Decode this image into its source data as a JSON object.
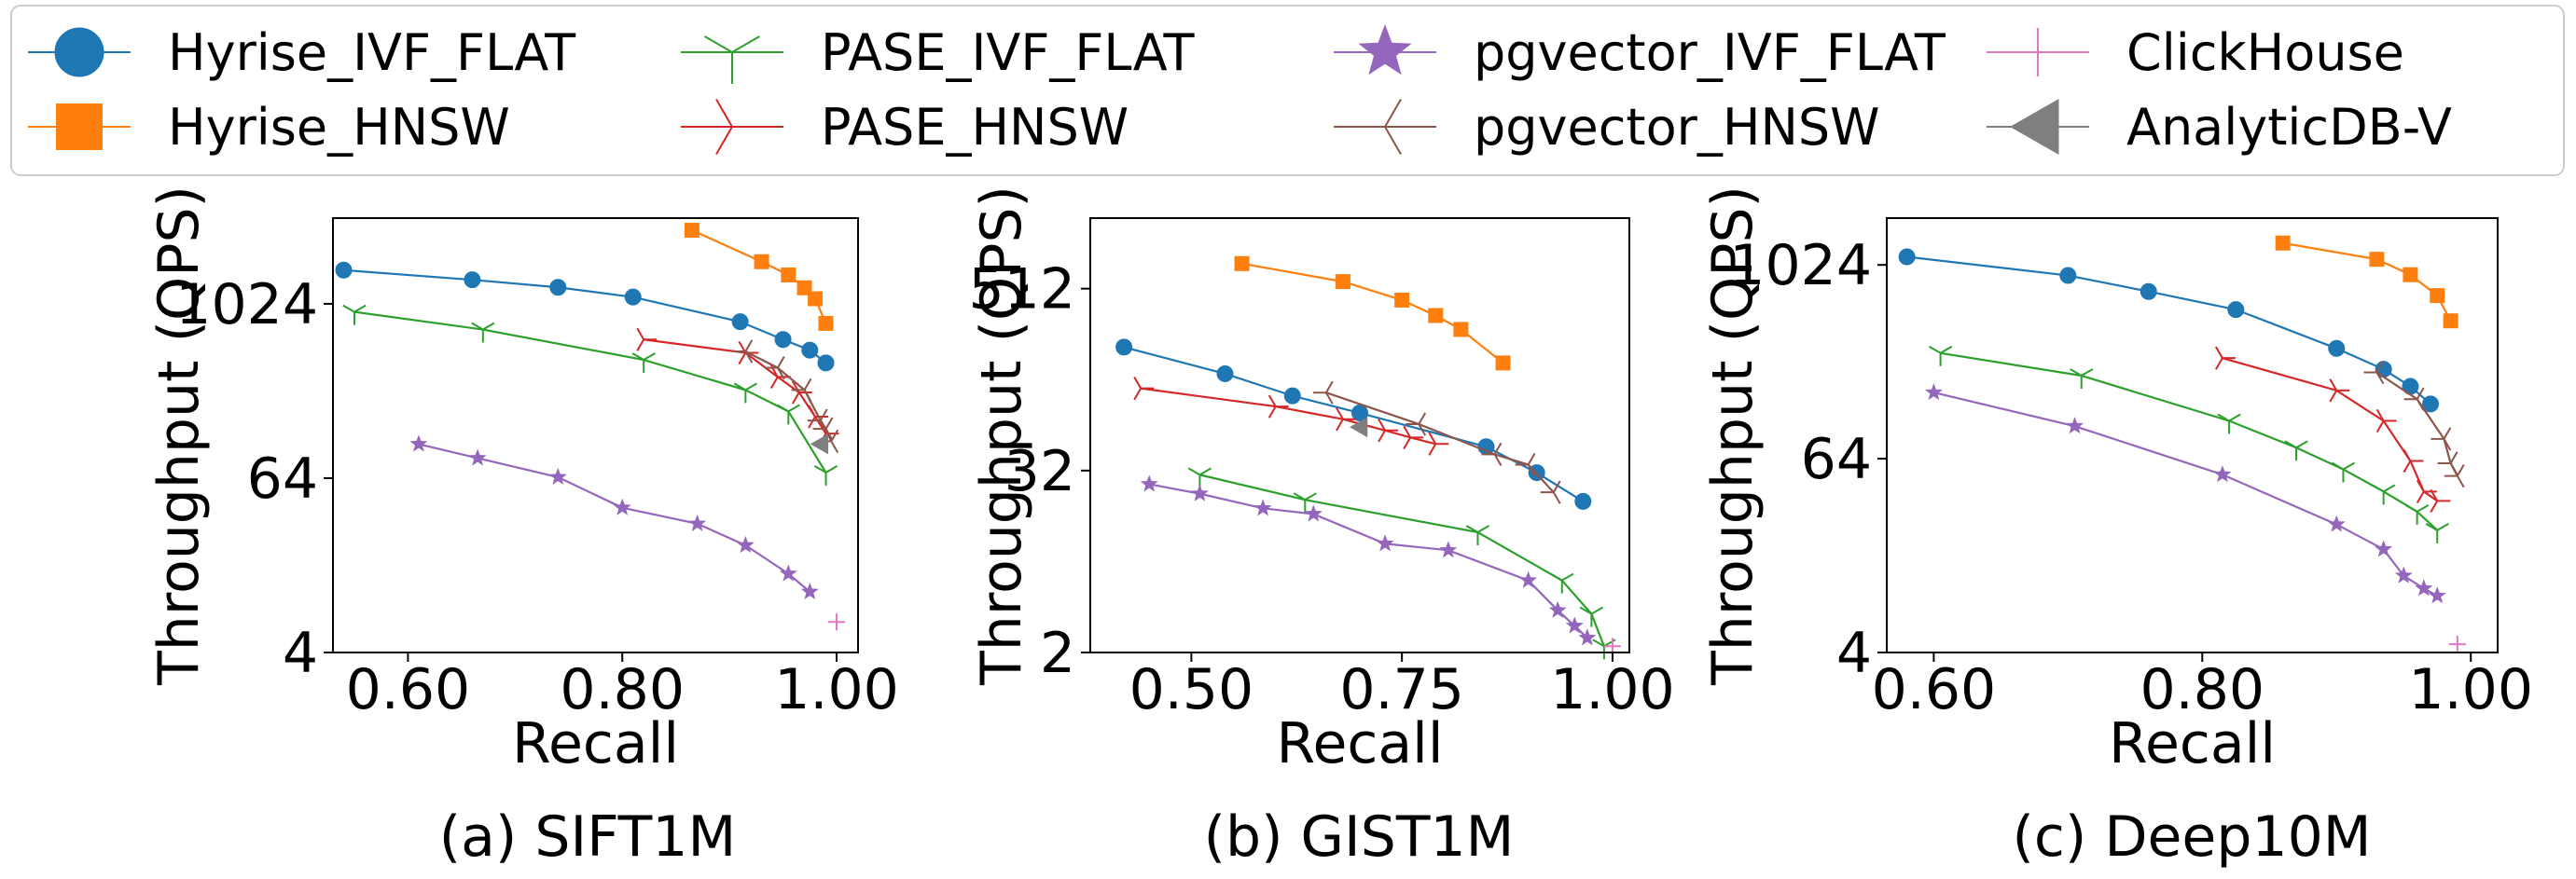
{
  "legend": {
    "items": [
      {
        "label": "Hyrise_IVF_FLAT",
        "series": "Hyrise_IVF_FLAT"
      },
      {
        "label": "Hyrise_HNSW",
        "series": "Hyrise_HNSW"
      },
      {
        "label": "PASE_IVF_FLAT",
        "series": "PASE_IVF_FLAT"
      },
      {
        "label": "PASE_HNSW",
        "series": "PASE_HNSW"
      },
      {
        "label": "pgvector_IVF_FLAT",
        "series": "pgvector_IVF_FLAT"
      },
      {
        "label": "pgvector_HNSW",
        "series": "pgvector_HNSW"
      },
      {
        "label": "ClickHouse",
        "series": "ClickHouse"
      },
      {
        "label": "AnalyticDB-V",
        "series": "AnalyticDB-V"
      }
    ]
  },
  "series_styles": {
    "Hyrise_IVF_FLAT": {
      "color": "#1f77b4",
      "marker": "circle"
    },
    "Hyrise_HNSW": {
      "color": "#ff7f0e",
      "marker": "square"
    },
    "PASE_IVF_FLAT": {
      "color": "#2ca02c",
      "marker": "tri-down"
    },
    "PASE_HNSW": {
      "color": "#d62728",
      "marker": "tri-right"
    },
    "pgvector_IVF_FLAT": {
      "color": "#9467bd",
      "marker": "star"
    },
    "pgvector_HNSW": {
      "color": "#8c564b",
      "marker": "tri-left"
    },
    "ClickHouse": {
      "color": "#e377c2",
      "marker": "plus"
    },
    "AnalyticDB-V": {
      "color": "#7f7f7f",
      "marker": "triangle-left"
    }
  },
  "chart_data": [
    {
      "type": "line",
      "caption": "(a) SIFT1M",
      "xlabel": "Recall",
      "ylabel": "Throughput (QPS)",
      "xlim": [
        0.53,
        1.02
      ],
      "ylim": [
        4,
        4000
      ],
      "yscale": "log2",
      "xticks": [
        0.6,
        0.8,
        1.0
      ],
      "xticklabels": [
        "0.60",
        "0.80",
        "1.00"
      ],
      "yticks": [
        4,
        64,
        1024
      ],
      "yticklabels": [
        "4",
        "64",
        "1024"
      ],
      "grid": false,
      "series": [
        {
          "name": "Hyrise_IVF_FLAT",
          "x": [
            0.54,
            0.66,
            0.74,
            0.81,
            0.91,
            0.95,
            0.975,
            0.99
          ],
          "y": [
            1750,
            1500,
            1330,
            1140,
            770,
            580,
            490,
            400
          ]
        },
        {
          "name": "Hyrise_HNSW",
          "x": [
            0.865,
            0.93,
            0.955,
            0.97,
            0.98,
            0.99
          ],
          "y": [
            3300,
            2000,
            1620,
            1320,
            1110,
            750
          ]
        },
        {
          "name": "PASE_IVF_FLAT",
          "x": [
            0.55,
            0.67,
            0.82,
            0.915,
            0.955,
            0.99
          ],
          "y": [
            900,
            680,
            420,
            260,
            185,
            70
          ]
        },
        {
          "name": "PASE_HNSW",
          "x": [
            0.82,
            0.915,
            0.945,
            0.965,
            0.98,
            0.99
          ],
          "y": [
            580,
            470,
            320,
            250,
            170,
            130
          ]
        },
        {
          "name": "pgvector_IVF_FLAT",
          "x": [
            0.61,
            0.665,
            0.74,
            0.8,
            0.87,
            0.915,
            0.955,
            0.975
          ],
          "y": [
            110,
            88,
            65,
            40,
            31,
            22,
            14,
            10.5
          ]
        },
        {
          "name": "pgvector_HNSW",
          "x": [
            0.915,
            0.945,
            0.97,
            0.985,
            0.99,
            0.995
          ],
          "y": [
            480,
            370,
            260,
            160,
            140,
            115
          ]
        },
        {
          "name": "ClickHouse",
          "x": [
            1.0
          ],
          "y": [
            6.5
          ]
        },
        {
          "name": "AnalyticDB-V",
          "x": [
            0.985
          ],
          "y": [
            110
          ]
        }
      ]
    },
    {
      "type": "line",
      "caption": "(b) GIST1M",
      "xlabel": "Recall",
      "ylabel": "Throughput (QPS)",
      "xlim": [
        0.38,
        1.02
      ],
      "ylim": [
        2,
        1500
      ],
      "yscale": "log2",
      "xticks": [
        0.5,
        0.75,
        1.0
      ],
      "xticklabels": [
        "0.50",
        "0.75",
        "1.00"
      ],
      "yticks": [
        2,
        32,
        512
      ],
      "yticklabels": [
        "2",
        "32",
        "512"
      ],
      "grid": false,
      "series": [
        {
          "name": "Hyrise_IVF_FLAT",
          "x": [
            0.42,
            0.54,
            0.62,
            0.7,
            0.85,
            0.91,
            0.965
          ],
          "y": [
            210,
            140,
            100,
            77,
            46,
            31,
            20
          ]
        },
        {
          "name": "Hyrise_HNSW",
          "x": [
            0.56,
            0.68,
            0.75,
            0.79,
            0.82,
            0.87
          ],
          "y": [
            750,
            570,
            430,
            340,
            275,
            165
          ]
        },
        {
          "name": "PASE_IVF_FLAT",
          "x": [
            0.51,
            0.635,
            0.84,
            0.94,
            0.975,
            0.99
          ],
          "y": [
            30,
            20.5,
            12.5,
            6,
            3.6,
            2.2
          ]
        },
        {
          "name": "PASE_HNSW",
          "x": [
            0.44,
            0.6,
            0.68,
            0.73,
            0.76,
            0.79
          ],
          "y": [
            112,
            85,
            70,
            59,
            53,
            48
          ]
        },
        {
          "name": "pgvector_IVF_FLAT",
          "x": [
            0.45,
            0.51,
            0.585,
            0.645,
            0.73,
            0.805,
            0.9,
            0.935,
            0.955,
            0.97
          ],
          "y": [
            26,
            22.5,
            18,
            16.5,
            10.5,
            9.5,
            6,
            3.8,
            3.0,
            2.5
          ]
        },
        {
          "name": "pgvector_HNSW",
          "x": [
            0.66,
            0.77,
            0.86,
            0.9,
            0.93
          ],
          "y": [
            105,
            65,
            41,
            35,
            23
          ]
        },
        {
          "name": "ClickHouse",
          "x": [
            1.0
          ],
          "y": [
            2.2
          ]
        },
        {
          "name": "AnalyticDB-V",
          "x": [
            0.7
          ],
          "y": [
            62
          ]
        }
      ]
    },
    {
      "type": "line",
      "caption": "(c) Deep10M",
      "xlabel": "Recall",
      "ylabel": "Throughput (QPS)",
      "xlim": [
        0.565,
        1.02
      ],
      "ylim": [
        4,
        2000
      ],
      "yscale": "log2",
      "xticks": [
        0.6,
        0.8,
        1.0
      ],
      "xticklabels": [
        "0.60",
        "0.80",
        "1.00"
      ],
      "yticks": [
        4,
        64,
        1024
      ],
      "yticklabels": [
        "4",
        "64",
        "1024"
      ],
      "grid": false,
      "series": [
        {
          "name": "Hyrise_IVF_FLAT",
          "x": [
            0.58,
            0.7,
            0.76,
            0.825,
            0.9,
            0.935,
            0.955,
            0.97
          ],
          "y": [
            1150,
            880,
            700,
            540,
            310,
            230,
            180,
            140
          ]
        },
        {
          "name": "Hyrise_HNSW",
          "x": [
            0.86,
            0.93,
            0.955,
            0.975,
            0.985
          ],
          "y": [
            1400,
            1110,
            890,
            660,
            460
          ]
        },
        {
          "name": "PASE_IVF_FLAT",
          "x": [
            0.605,
            0.71,
            0.82,
            0.87,
            0.905,
            0.935,
            0.96,
            0.975
          ],
          "y": [
            290,
            210,
            110,
            75,
            55,
            40,
            30,
            23
          ]
        },
        {
          "name": "PASE_HNSW",
          "x": [
            0.815,
            0.9,
            0.935,
            0.955,
            0.965,
            0.975
          ],
          "y": [
            270,
            170,
            110,
            62,
            40,
            35
          ]
        },
        {
          "name": "pgvector_IVF_FLAT",
          "x": [
            0.6,
            0.705,
            0.815,
            0.9,
            0.935,
            0.95,
            0.965,
            0.975
          ],
          "y": [
            165,
            102,
            51,
            25,
            17.5,
            12,
            10,
            9
          ]
        },
        {
          "name": "pgvector_HNSW",
          "x": [
            0.93,
            0.96,
            0.98,
            0.985,
            0.99
          ],
          "y": [
            220,
            150,
            85,
            60,
            50
          ]
        },
        {
          "name": "ClickHouse",
          "x": [
            0.99
          ],
          "y": [
            4.5
          ]
        }
      ]
    }
  ]
}
